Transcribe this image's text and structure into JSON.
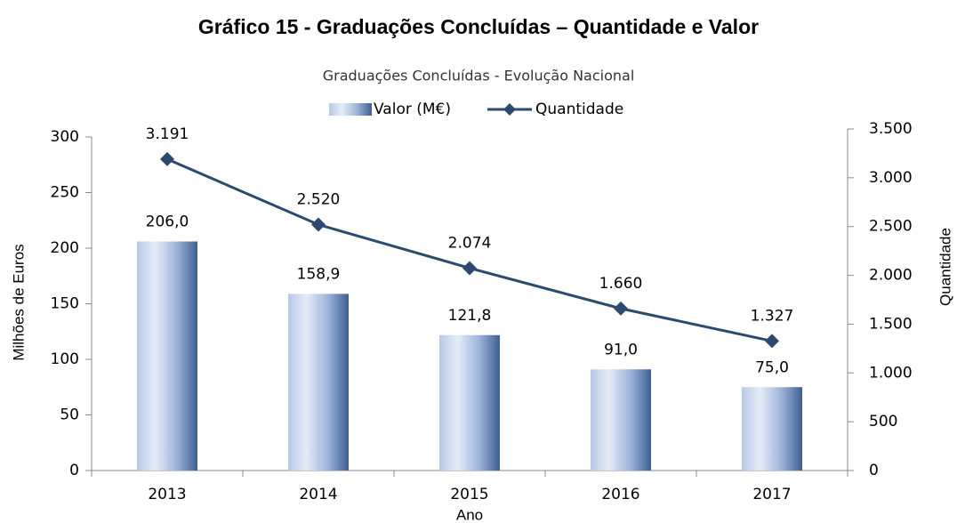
{
  "chart_data": {
    "type": "bar_line",
    "title": "Gráfico 15 - Graduações Concluídas – Quantidade e Valor",
    "subtitle": "Graduações Concluídas - Evolução Nacional",
    "x_label": "Ano",
    "y_label": "Milhões de Euros",
    "y2_label": "Quantidade",
    "categories": [
      "2013",
      "2014",
      "2015",
      "2016",
      "2017"
    ],
    "series": [
      {
        "name": "Valor (M€)",
        "type": "bar",
        "color": "#3e5f92",
        "values": [
          206.0,
          158.9,
          121.8,
          91.0,
          75.0
        ],
        "value_labels": [
          "206,0",
          "158,9",
          "121,8",
          "91,0",
          "75,0"
        ]
      },
      {
        "name": "Quantidade",
        "type": "line",
        "axis": "y2",
        "color": "#2c4a70",
        "values": [
          3191,
          2520,
          2074,
          1660,
          1327
        ],
        "value_labels": [
          "3.191",
          "2.520",
          "2.074",
          "1.660",
          "1.327"
        ]
      }
    ],
    "ylim": [
      0,
      300
    ],
    "yticks": [
      0,
      50,
      100,
      150,
      200,
      250,
      300
    ],
    "y2lim": [
      0,
      3500
    ],
    "y2ticks": [
      0,
      500,
      {
        "value": 1000,
        "label": "1.000"
      },
      {
        "value": 1500,
        "label": "1.500"
      },
      {
        "value": 2000,
        "label": "2.000"
      },
      {
        "value": 2500,
        "label": "2.500"
      },
      {
        "value": 3000,
        "label": "3.000"
      },
      {
        "value": 3500,
        "label": "3.500"
      }
    ],
    "legend": "top"
  }
}
